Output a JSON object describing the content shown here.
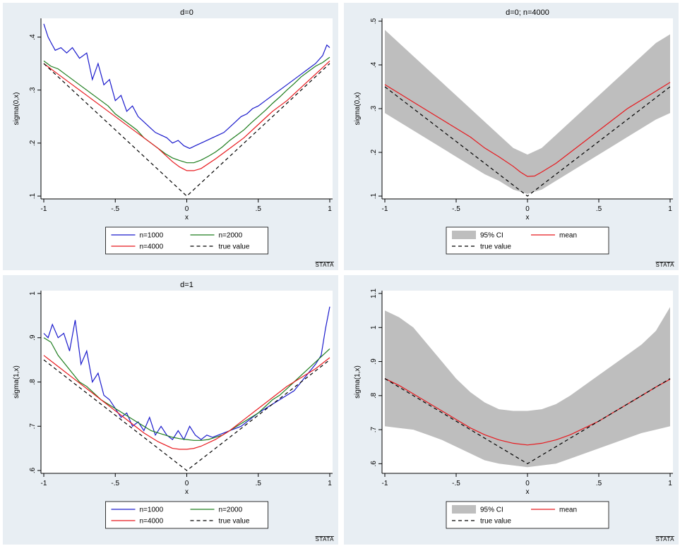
{
  "colors": {
    "panel_bg": "#e8eef3",
    "plot_bg": "#ffffff",
    "n1000": "#1a1acc",
    "n2000": "#1e7d1e",
    "n4000": "#e8191e",
    "true_value": "#000000",
    "ci_fill": "#bebebe"
  },
  "watermark": "STATA",
  "chart_data": [
    {
      "type": "line",
      "title": "d=0",
      "xlabel": "x",
      "ylabel": "sigma(0,x)",
      "xlim": [
        -1,
        1
      ],
      "ylim": [
        0.1,
        0.43
      ],
      "xticks": [
        -1,
        -0.5,
        0,
        0.5,
        1
      ],
      "xtick_labels": [
        "-1",
        "-.5",
        "0",
        ".5",
        "1"
      ],
      "yticks": [
        0.1,
        0.2,
        0.3,
        0.4
      ],
      "ytick_labels": [
        ".1",
        ".2",
        ".3",
        ".4"
      ],
      "legend": [
        "n=1000",
        "n=2000",
        "n=4000",
        "true value"
      ],
      "legend_position": "bottom",
      "series": [
        {
          "name": "n=1000",
          "x": [
            -1,
            -0.97,
            -0.95,
            -0.92,
            -0.88,
            -0.84,
            -0.8,
            -0.75,
            -0.7,
            -0.66,
            -0.62,
            -0.58,
            -0.54,
            -0.5,
            -0.46,
            -0.42,
            -0.38,
            -0.34,
            -0.3,
            -0.26,
            -0.22,
            -0.18,
            -0.14,
            -0.1,
            -0.06,
            -0.02,
            0.02,
            0.06,
            0.1,
            0.14,
            0.18,
            0.22,
            0.26,
            0.3,
            0.34,
            0.38,
            0.42,
            0.46,
            0.5,
            0.55,
            0.6,
            0.65,
            0.7,
            0.75,
            0.8,
            0.85,
            0.9,
            0.95,
            0.98,
            1
          ],
          "y": [
            0.425,
            0.4,
            0.39,
            0.375,
            0.38,
            0.37,
            0.38,
            0.36,
            0.37,
            0.32,
            0.35,
            0.31,
            0.32,
            0.28,
            0.29,
            0.26,
            0.27,
            0.25,
            0.24,
            0.23,
            0.22,
            0.215,
            0.21,
            0.2,
            0.205,
            0.195,
            0.19,
            0.195,
            0.2,
            0.205,
            0.21,
            0.215,
            0.22,
            0.23,
            0.24,
            0.25,
            0.255,
            0.265,
            0.27,
            0.28,
            0.29,
            0.3,
            0.31,
            0.32,
            0.33,
            0.34,
            0.35,
            0.365,
            0.385,
            0.38
          ]
        },
        {
          "name": "n=2000",
          "x": [
            -1,
            -0.95,
            -0.9,
            -0.85,
            -0.8,
            -0.75,
            -0.7,
            -0.65,
            -0.6,
            -0.55,
            -0.5,
            -0.45,
            -0.4,
            -0.35,
            -0.3,
            -0.25,
            -0.2,
            -0.15,
            -0.1,
            -0.05,
            0,
            0.05,
            0.1,
            0.15,
            0.2,
            0.25,
            0.3,
            0.35,
            0.4,
            0.45,
            0.5,
            0.55,
            0.6,
            0.65,
            0.7,
            0.75,
            0.8,
            0.85,
            0.9,
            0.95,
            1
          ],
          "y": [
            0.355,
            0.345,
            0.34,
            0.33,
            0.32,
            0.31,
            0.3,
            0.29,
            0.28,
            0.27,
            0.255,
            0.245,
            0.235,
            0.225,
            0.21,
            0.2,
            0.19,
            0.18,
            0.172,
            0.167,
            0.163,
            0.163,
            0.168,
            0.175,
            0.183,
            0.193,
            0.205,
            0.215,
            0.225,
            0.238,
            0.25,
            0.262,
            0.275,
            0.287,
            0.3,
            0.312,
            0.325,
            0.335,
            0.345,
            0.352,
            0.362
          ]
        },
        {
          "name": "n=4000",
          "x": [
            -1,
            -0.9,
            -0.8,
            -0.7,
            -0.6,
            -0.5,
            -0.4,
            -0.3,
            -0.2,
            -0.1,
            -0.05,
            0,
            0.05,
            0.1,
            0.2,
            0.3,
            0.4,
            0.5,
            0.6,
            0.7,
            0.8,
            0.9,
            1
          ],
          "y": [
            0.35,
            0.33,
            0.31,
            0.29,
            0.27,
            0.25,
            0.23,
            0.21,
            0.19,
            0.165,
            0.155,
            0.148,
            0.148,
            0.152,
            0.17,
            0.19,
            0.21,
            0.235,
            0.26,
            0.28,
            0.305,
            0.33,
            0.355
          ]
        },
        {
          "name": "true value",
          "x": [
            -1,
            0,
            1
          ],
          "y": [
            0.35,
            0.1,
            0.35
          ]
        }
      ]
    },
    {
      "type": "area",
      "title": "d=0; n=4000",
      "xlabel": "x",
      "ylabel": "sigma(0,x)",
      "xlim": [
        -1,
        1
      ],
      "ylim": [
        0.1,
        0.5
      ],
      "xticks": [
        -1,
        -0.5,
        0,
        0.5,
        1
      ],
      "xtick_labels": [
        "-1",
        "-.5",
        "0",
        ".5",
        "1"
      ],
      "yticks": [
        0.1,
        0.2,
        0.3,
        0.4,
        0.5
      ],
      "ytick_labels": [
        ".1",
        ".2",
        ".3",
        ".4",
        ".5"
      ],
      "legend": [
        "95% CI",
        "mean",
        "true value"
      ],
      "legend_position": "bottom",
      "ci": {
        "x": [
          -1,
          -0.9,
          -0.8,
          -0.7,
          -0.6,
          -0.5,
          -0.4,
          -0.3,
          -0.2,
          -0.1,
          0,
          0.1,
          0.2,
          0.3,
          0.4,
          0.5,
          0.6,
          0.7,
          0.8,
          0.9,
          1
        ],
        "lower": [
          0.29,
          0.27,
          0.25,
          0.23,
          0.21,
          0.19,
          0.17,
          0.15,
          0.135,
          0.115,
          0.105,
          0.115,
          0.135,
          0.155,
          0.175,
          0.195,
          0.215,
          0.235,
          0.255,
          0.275,
          0.29
        ],
        "upper": [
          0.48,
          0.45,
          0.42,
          0.39,
          0.36,
          0.33,
          0.3,
          0.27,
          0.24,
          0.21,
          0.195,
          0.21,
          0.24,
          0.27,
          0.3,
          0.33,
          0.36,
          0.39,
          0.42,
          0.45,
          0.47
        ]
      },
      "series": [
        {
          "name": "mean",
          "x": [
            -1,
            -0.9,
            -0.8,
            -0.7,
            -0.6,
            -0.5,
            -0.4,
            -0.3,
            -0.2,
            -0.1,
            -0.05,
            0,
            0.05,
            0.1,
            0.2,
            0.3,
            0.4,
            0.5,
            0.6,
            0.7,
            0.8,
            0.9,
            1
          ],
          "y": [
            0.355,
            0.335,
            0.315,
            0.295,
            0.275,
            0.255,
            0.235,
            0.21,
            0.19,
            0.168,
            0.155,
            0.145,
            0.146,
            0.155,
            0.175,
            0.2,
            0.225,
            0.25,
            0.275,
            0.3,
            0.32,
            0.34,
            0.36
          ]
        },
        {
          "name": "true value",
          "x": [
            -1,
            0,
            1
          ],
          "y": [
            0.35,
            0.1,
            0.35
          ]
        }
      ]
    },
    {
      "type": "line",
      "title": "d=1",
      "xlabel": "x",
      "ylabel": "sigma(1,x)",
      "xlim": [
        -1,
        1
      ],
      "ylim": [
        0.6,
        1.0
      ],
      "xticks": [
        -1,
        -0.5,
        0,
        0.5,
        1
      ],
      "xtick_labels": [
        "-1",
        "-.5",
        "0",
        ".5",
        "1"
      ],
      "yticks": [
        0.6,
        0.7,
        0.8,
        0.9,
        1.0
      ],
      "ytick_labels": [
        ".6",
        ".7",
        ".8",
        ".9",
        "1"
      ],
      "legend": [
        "n=1000",
        "n=2000",
        "n=4000",
        "true value"
      ],
      "legend_position": "bottom",
      "series": [
        {
          "name": "n=1000",
          "x": [
            -1,
            -0.97,
            -0.94,
            -0.9,
            -0.86,
            -0.82,
            -0.78,
            -0.74,
            -0.7,
            -0.66,
            -0.62,
            -0.58,
            -0.54,
            -0.5,
            -0.46,
            -0.42,
            -0.38,
            -0.34,
            -0.3,
            -0.26,
            -0.22,
            -0.18,
            -0.14,
            -0.1,
            -0.06,
            -0.02,
            0.02,
            0.06,
            0.1,
            0.14,
            0.18,
            0.22,
            0.26,
            0.3,
            0.34,
            0.38,
            0.42,
            0.46,
            0.5,
            0.55,
            0.6,
            0.65,
            0.7,
            0.75,
            0.8,
            0.85,
            0.9,
            0.94,
            0.97,
            1
          ],
          "y": [
            0.91,
            0.9,
            0.93,
            0.9,
            0.91,
            0.87,
            0.94,
            0.84,
            0.87,
            0.8,
            0.82,
            0.77,
            0.76,
            0.74,
            0.72,
            0.73,
            0.7,
            0.71,
            0.69,
            0.72,
            0.68,
            0.7,
            0.68,
            0.67,
            0.69,
            0.67,
            0.7,
            0.68,
            0.67,
            0.68,
            0.675,
            0.68,
            0.685,
            0.69,
            0.695,
            0.7,
            0.71,
            0.72,
            0.73,
            0.74,
            0.75,
            0.76,
            0.77,
            0.78,
            0.8,
            0.82,
            0.84,
            0.86,
            0.92,
            0.97
          ]
        },
        {
          "name": "n=2000",
          "x": [
            -1,
            -0.95,
            -0.9,
            -0.85,
            -0.8,
            -0.75,
            -0.7,
            -0.65,
            -0.6,
            -0.55,
            -0.5,
            -0.45,
            -0.4,
            -0.35,
            -0.3,
            -0.25,
            -0.2,
            -0.15,
            -0.1,
            -0.05,
            0,
            0.05,
            0.1,
            0.15,
            0.2,
            0.25,
            0.3,
            0.35,
            0.4,
            0.45,
            0.5,
            0.55,
            0.6,
            0.65,
            0.7,
            0.75,
            0.8,
            0.85,
            0.9,
            0.95,
            1
          ],
          "y": [
            0.9,
            0.89,
            0.86,
            0.84,
            0.82,
            0.8,
            0.79,
            0.775,
            0.76,
            0.75,
            0.74,
            0.73,
            0.72,
            0.71,
            0.7,
            0.69,
            0.685,
            0.68,
            0.675,
            0.672,
            0.67,
            0.668,
            0.668,
            0.67,
            0.675,
            0.68,
            0.69,
            0.7,
            0.71,
            0.72,
            0.73,
            0.745,
            0.76,
            0.77,
            0.785,
            0.8,
            0.815,
            0.83,
            0.845,
            0.86,
            0.875
          ]
        },
        {
          "name": "n=4000",
          "x": [
            -1,
            -0.9,
            -0.8,
            -0.7,
            -0.6,
            -0.5,
            -0.4,
            -0.3,
            -0.2,
            -0.1,
            -0.05,
            0,
            0.05,
            0.1,
            0.2,
            0.3,
            0.4,
            0.5,
            0.6,
            0.7,
            0.8,
            0.9,
            1
          ],
          "y": [
            0.86,
            0.835,
            0.81,
            0.785,
            0.76,
            0.735,
            0.71,
            0.685,
            0.665,
            0.65,
            0.648,
            0.648,
            0.65,
            0.655,
            0.67,
            0.69,
            0.715,
            0.74,
            0.765,
            0.79,
            0.81,
            0.83,
            0.855
          ]
        },
        {
          "name": "true value",
          "x": [
            -1,
            0,
            1
          ],
          "y": [
            0.85,
            0.6,
            0.85
          ]
        }
      ]
    },
    {
      "type": "area",
      "title": "",
      "xlabel": "x",
      "ylabel": "sigma(1,x)",
      "xlim": [
        -1,
        1
      ],
      "ylim": [
        0.58,
        1.1
      ],
      "xticks": [
        -1,
        -0.5,
        0,
        0.5,
        1
      ],
      "xtick_labels": [
        "-1",
        "-.5",
        "0",
        ".5",
        "1"
      ],
      "yticks": [
        0.6,
        0.7,
        0.8,
        0.9,
        1.0,
        1.1
      ],
      "ytick_labels": [
        ".6",
        ".7",
        ".8",
        ".9",
        "1",
        "1.1"
      ],
      "legend": [
        "95% CI",
        "mean",
        "true value"
      ],
      "legend_position": "bottom",
      "ci": {
        "x": [
          -1,
          -0.9,
          -0.8,
          -0.7,
          -0.6,
          -0.5,
          -0.4,
          -0.3,
          -0.2,
          -0.1,
          0,
          0.1,
          0.2,
          0.3,
          0.4,
          0.5,
          0.6,
          0.7,
          0.8,
          0.9,
          1
        ],
        "lower": [
          0.71,
          0.705,
          0.7,
          0.685,
          0.67,
          0.65,
          0.63,
          0.61,
          0.6,
          0.595,
          0.59,
          0.595,
          0.6,
          0.615,
          0.63,
          0.645,
          0.66,
          0.675,
          0.69,
          0.7,
          0.71
        ],
        "upper": [
          1.05,
          1.03,
          1.0,
          0.95,
          0.9,
          0.85,
          0.81,
          0.78,
          0.76,
          0.755,
          0.755,
          0.76,
          0.775,
          0.8,
          0.83,
          0.86,
          0.89,
          0.92,
          0.95,
          0.99,
          1.06
        ]
      },
      "series": [
        {
          "name": "mean",
          "x": [
            -1,
            -0.9,
            -0.8,
            -0.7,
            -0.6,
            -0.5,
            -0.4,
            -0.3,
            -0.2,
            -0.1,
            0,
            0.1,
            0.2,
            0.3,
            0.4,
            0.5,
            0.6,
            0.7,
            0.8,
            0.9,
            1
          ],
          "y": [
            0.85,
            0.83,
            0.805,
            0.78,
            0.755,
            0.73,
            0.705,
            0.685,
            0.67,
            0.66,
            0.655,
            0.66,
            0.67,
            0.685,
            0.705,
            0.725,
            0.75,
            0.775,
            0.8,
            0.825,
            0.848
          ]
        },
        {
          "name": "true value",
          "x": [
            -1,
            0,
            1
          ],
          "y": [
            0.85,
            0.6,
            0.85
          ]
        }
      ]
    }
  ]
}
